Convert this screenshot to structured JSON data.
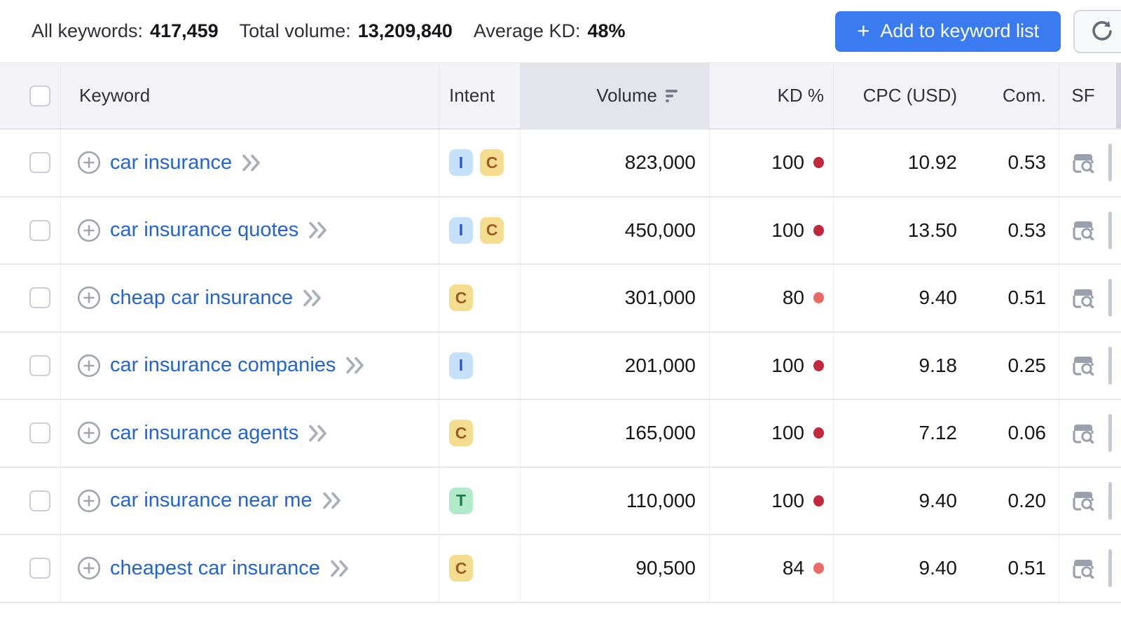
{
  "toolbar": {
    "stats": {
      "all_keywords_label": "All keywords:",
      "all_keywords_value": "417,459",
      "total_volume_label": "Total volume:",
      "total_volume_value": "13,209,840",
      "average_kd_label": "Average KD:",
      "average_kd_value": "48%"
    },
    "add_button": {
      "plus": "+",
      "label": "Add to keyword list"
    },
    "refresh_icon": "refresh-arrow"
  },
  "table": {
    "headers": {
      "keyword": "Keyword",
      "intent": "Intent",
      "volume": "Volume",
      "kd": "KD %",
      "cpc": "CPC (USD)",
      "com": "Com.",
      "sf": "SF"
    },
    "sort": {
      "column": "Volume",
      "direction": "desc"
    },
    "intent_badges": {
      "I": {
        "label": "I",
        "name": "informational",
        "bg": "#c5e0f9",
        "fg": "#2b52c4"
      },
      "C": {
        "label": "C",
        "name": "commercial",
        "bg": "#f5dd90",
        "fg": "#9c5b24"
      },
      "T": {
        "label": "T",
        "name": "transactional",
        "bg": "#b2ebc9",
        "fg": "#1e7b4b"
      }
    },
    "kd_colors": {
      "very_hard": "#c2283c",
      "hard": "#eb6a66"
    },
    "rows": [
      {
        "keyword": "car insurance",
        "intents": [
          "I",
          "C"
        ],
        "volume": "823,000",
        "kd": "100",
        "kd_dot": "#c2283c",
        "cpc": "10.92",
        "com": "0.53"
      },
      {
        "keyword": "car insurance quotes",
        "intents": [
          "I",
          "C"
        ],
        "volume": "450,000",
        "kd": "100",
        "kd_dot": "#c2283c",
        "cpc": "13.50",
        "com": "0.53"
      },
      {
        "keyword": "cheap car insurance",
        "intents": [
          "C"
        ],
        "volume": "301,000",
        "kd": "80",
        "kd_dot": "#eb6a66",
        "cpc": "9.40",
        "com": "0.51"
      },
      {
        "keyword": "car insurance companies",
        "intents": [
          "I"
        ],
        "volume": "201,000",
        "kd": "100",
        "kd_dot": "#c2283c",
        "cpc": "9.18",
        "com": "0.25"
      },
      {
        "keyword": "car insurance agents",
        "intents": [
          "C"
        ],
        "volume": "165,000",
        "kd": "100",
        "kd_dot": "#c2283c",
        "cpc": "7.12",
        "com": "0.06"
      },
      {
        "keyword": "car insurance near me",
        "intents": [
          "T"
        ],
        "volume": "110,000",
        "kd": "100",
        "kd_dot": "#c2283c",
        "cpc": "9.40",
        "com": "0.20"
      },
      {
        "keyword": "cheapest car insurance",
        "intents": [
          "C"
        ],
        "volume": "90,500",
        "kd": "84",
        "kd_dot": "#eb6a66",
        "cpc": "9.40",
        "com": "0.51"
      }
    ]
  }
}
